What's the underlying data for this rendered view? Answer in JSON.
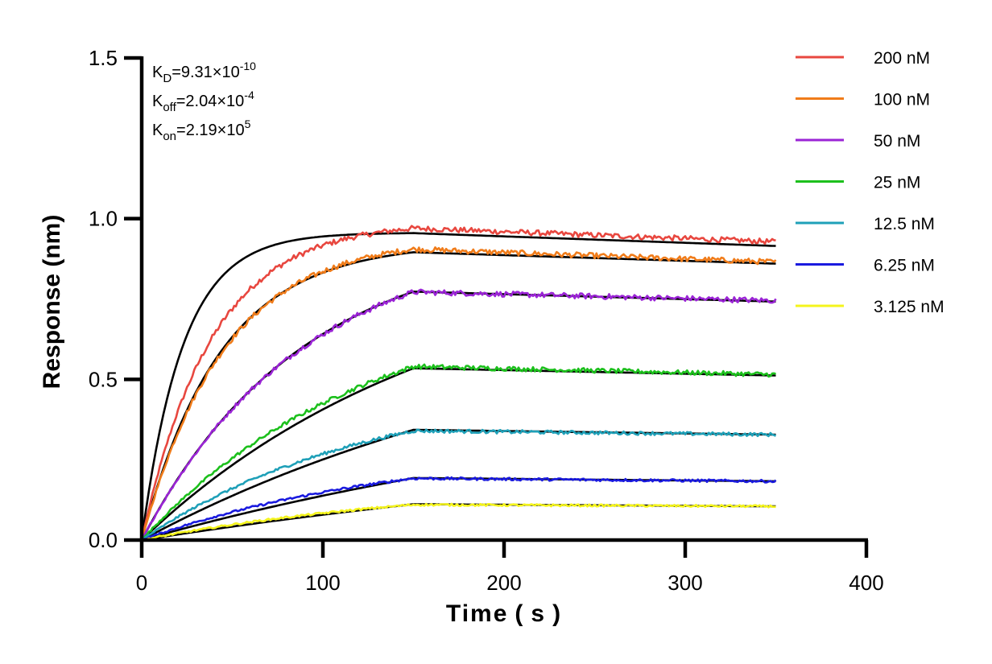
{
  "chart_data": {
    "type": "line",
    "title": "",
    "xlabel": "Time ( s )",
    "ylabel": "Response (nm)",
    "xlim": [
      0,
      400
    ],
    "ylim": [
      0,
      1.5
    ],
    "x_ticks": [
      0,
      100,
      200,
      300,
      400
    ],
    "x_tick_labels": [
      "0",
      "100",
      "200",
      "300",
      "400"
    ],
    "y_ticks": [
      0,
      0.5,
      1.0,
      1.5
    ],
    "y_tick_labels": [
      "0.0",
      "0.5",
      "1.0",
      "1.5"
    ],
    "grid": false,
    "legend_position": "top-right",
    "association_end": 150,
    "dissociation_end": 350,
    "constants": {
      "kd": {
        "base": "K",
        "sub": "D",
        "value": "=9.31×10",
        "exp": "-10"
      },
      "koff": {
        "base": "K",
        "sub": "off",
        "value": "=2.04×10",
        "exp": "-4"
      },
      "kon": {
        "base": "K",
        "sub": "on",
        "value": "=2.19×10",
        "exp": "5"
      }
    },
    "fit_color": "#000000",
    "series": [
      {
        "name": "200 nM",
        "color": "#e8473f",
        "peak_fit": 0.955,
        "k_obs_fit": 0.044,
        "end_fit": 0.915,
        "peak_meas": 0.97,
        "k_obs_meas": 0.026,
        "end_meas": 0.928
      },
      {
        "name": "100 nM",
        "color": "#f07c1a",
        "peak_fit": 0.8955,
        "k_obs_fit": 0.023,
        "end_fit": 0.86,
        "peak_meas": 0.905,
        "k_obs_meas": 0.022,
        "end_meas": 0.865
      },
      {
        "name": "50 nM",
        "color": "#9b24d6",
        "peak_fit": 0.773,
        "k_obs_fit": 0.0113,
        "end_fit": 0.742,
        "peak_meas": 0.772,
        "k_obs_meas": 0.0113,
        "end_meas": 0.745
      },
      {
        "name": "25 nM",
        "color": "#1cc01c",
        "peak_fit": 0.5345,
        "k_obs_fit": 0.006,
        "end_fit": 0.512,
        "peak_meas": 0.54,
        "k_obs_meas": 0.008,
        "end_meas": 0.515
      },
      {
        "name": "12.5 nM",
        "color": "#1fa0b8",
        "peak_fit": 0.343,
        "k_obs_fit": 0.004,
        "end_fit": 0.328,
        "peak_meas": 0.34,
        "k_obs_meas": 0.008,
        "end_meas": 0.328
      },
      {
        "name": "6.25 nM",
        "color": "#1a1adf",
        "peak_fit": 0.193,
        "k_obs_fit": 0.003,
        "end_fit": 0.183,
        "peak_meas": 0.192,
        "k_obs_meas": 0.007,
        "end_meas": 0.183
      },
      {
        "name": "3.125 nM",
        "color": "#f4f41c",
        "peak_fit": 0.1115,
        "k_obs_fit": 0.0025,
        "end_fit": 0.105,
        "peak_meas": 0.11,
        "k_obs_meas": 0.006,
        "end_meas": 0.105
      }
    ]
  }
}
